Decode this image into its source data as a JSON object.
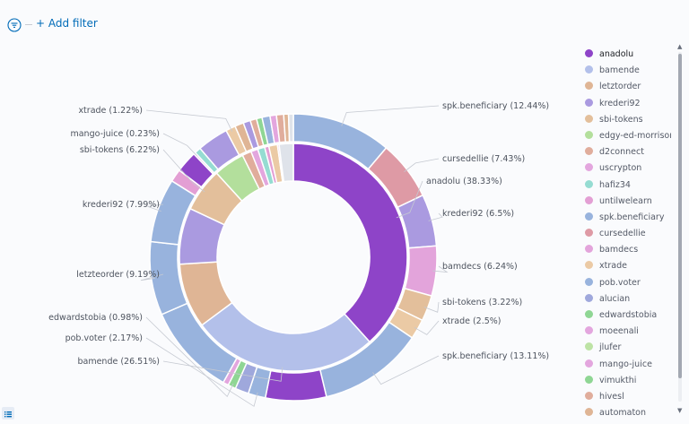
{
  "filter_bar": {
    "add_filter_label": "+ Add filter"
  },
  "legend": {
    "items": [
      {
        "label": "anadolu",
        "color": "#8e44c8"
      },
      {
        "label": "bamende",
        "color": "#b3c0ea"
      },
      {
        "label": "letztorder",
        "color": "#dfb595"
      },
      {
        "label": "krederi92",
        "color": "#aa9ae0"
      },
      {
        "label": "sbi-tokens",
        "color": "#e3bf9b"
      },
      {
        "label": "edgy-ed-morrison",
        "color": "#b3df9c"
      },
      {
        "label": "d2connect",
        "color": "#e0ad9c"
      },
      {
        "label": "uscrypton",
        "color": "#e3a6de"
      },
      {
        "label": "hafiz34",
        "color": "#95dcd2"
      },
      {
        "label": "untilwelearn",
        "color": "#e39fd4"
      },
      {
        "label": "spk.beneficiary",
        "color": "#98b3dd"
      },
      {
        "label": "cursedellie",
        "color": "#de9aa5"
      },
      {
        "label": "bamdecs",
        "color": "#e3a4db"
      },
      {
        "label": "xtrade",
        "color": "#ebcaa5"
      },
      {
        "label": "pob.voter",
        "color": "#98b3dd"
      },
      {
        "label": "alucian",
        "color": "#9fa8dc"
      },
      {
        "label": "edwardstobia",
        "color": "#8fd694"
      },
      {
        "label": "moeenali",
        "color": "#e3a6de"
      },
      {
        "label": "jlufer",
        "color": "#bde3a5"
      },
      {
        "label": "mango-juice",
        "color": "#e3a6de"
      },
      {
        "label": "vimukthi",
        "color": "#8fd694"
      },
      {
        "label": "hivesl",
        "color": "#e0ad9c"
      },
      {
        "label": "automaton",
        "color": "#dfb595"
      }
    ]
  },
  "chart_data": {
    "type": "pie",
    "donut": true,
    "inner_ring": {
      "slices": [
        {
          "label": "anadolu",
          "value": 38.33,
          "color": "#8e44c8",
          "show_label": true
        },
        {
          "label": "bamende",
          "value": 26.51,
          "color": "#b3c0ea",
          "show_label": true
        },
        {
          "label": "letzteorder",
          "value": 9.19,
          "color": "#dfb595",
          "show_label": true
        },
        {
          "label": "krederi92",
          "value": 7.99,
          "color": "#aa9ae0",
          "show_label": true
        },
        {
          "label": "sbi-tokens",
          "value": 6.22,
          "color": "#e3bf9b",
          "show_label": true
        },
        {
          "label": "edgy-ed-morrison",
          "value": 4.4,
          "color": "#b3df9c",
          "show_label": false
        },
        {
          "label": "d2connect",
          "value": 1.3,
          "color": "#e0ad9c",
          "show_label": false
        },
        {
          "label": "uscrypton",
          "value": 1.0,
          "color": "#e3a6de",
          "show_label": false
        },
        {
          "label": "hafiz34",
          "value": 1.0,
          "color": "#95dcd2",
          "show_label": false
        },
        {
          "label": "untilwelearn",
          "value": 0.6,
          "color": "#e39fd4",
          "show_label": false
        },
        {
          "label": "xtrade",
          "value": 1.22,
          "color": "#ebcaa5",
          "show_label": true
        },
        {
          "label": "mango-juice",
          "value": 0.23,
          "color": "#e3a6de",
          "show_label": true
        },
        {
          "label": "other",
          "value": 2.01,
          "color": "#dfe3ea",
          "show_label": false
        }
      ]
    },
    "outer_ring": {
      "slices": [
        {
          "label": "spk.beneficiary",
          "value": 12.44,
          "color": "#98b3dd",
          "show_label": true
        },
        {
          "label": "cursedellie",
          "value": 7.43,
          "color": "#de9aa5",
          "show_label": true
        },
        {
          "label": "krederi92",
          "value": 6.5,
          "color": "#aa9ae0",
          "show_label": true
        },
        {
          "label": "bamdecs",
          "value": 6.24,
          "color": "#e3a4db",
          "show_label": true
        },
        {
          "label": "sbi-tokens",
          "value": 3.22,
          "color": "#e3bf9b",
          "show_label": true
        },
        {
          "label": "xtrade",
          "value": 2.5,
          "color": "#ebcaa5",
          "show_label": true
        },
        {
          "label": "spk.beneficiary",
          "value": 13.11,
          "color": "#98b3dd",
          "show_label": true
        },
        {
          "label": "bamende",
          "value": 7.6,
          "color": "#8e44c8",
          "show_label": false
        },
        {
          "label": "pob.voter",
          "value": 2.17,
          "color": "#98b3dd",
          "show_label": true
        },
        {
          "label": "alucian",
          "value": 1.7,
          "color": "#9fa8dc",
          "show_label": false
        },
        {
          "label": "edwardstobia",
          "value": 0.98,
          "color": "#8fd694",
          "show_label": true
        },
        {
          "label": "moeenali",
          "value": 0.7,
          "color": "#e3a6de",
          "show_label": false
        },
        {
          "label": "bamende",
          "value": 11.5,
          "color": "#98b3dd",
          "show_label": false
        },
        {
          "label": "letzteorder",
          "value": 9.19,
          "color": "#98b3dd",
          "show_label": true
        },
        {
          "label": "krederi92",
          "value": 7.99,
          "color": "#98b3dd",
          "show_label": true
        },
        {
          "label": "uscrypton",
          "value": 1.6,
          "color": "#e39fd4",
          "show_label": false
        },
        {
          "label": "sbi-tokens",
          "value": 2.7,
          "color": "#8e44c8",
          "show_label": false
        },
        {
          "label": "mango-juice",
          "value": 0.23,
          "color": "#e3a6de",
          "show_label": true
        },
        {
          "label": "hafiz34",
          "value": 0.8,
          "color": "#95dcd2",
          "show_label": false
        },
        {
          "label": "edgy-ed-morrison",
          "value": 3.9,
          "color": "#aa9ae0",
          "show_label": false
        },
        {
          "label": "xtrade",
          "value": 1.22,
          "color": "#ebcaa5",
          "show_label": true
        },
        {
          "label": "d2connect",
          "value": 1.1,
          "color": "#dfb595",
          "show_label": false
        },
        {
          "label": "untilwelearn",
          "value": 0.9,
          "color": "#aa9ae0",
          "show_label": false
        },
        {
          "label": "hivesl",
          "value": 0.8,
          "color": "#e0ad9c",
          "show_label": false
        },
        {
          "label": "vimukthi",
          "value": 0.7,
          "color": "#8fd694",
          "show_label": false
        },
        {
          "label": "jlufer",
          "value": 1.0,
          "color": "#98b3dd",
          "show_label": false
        },
        {
          "label": "automaton",
          "value": 0.8,
          "color": "#e3a6de",
          "show_label": false
        },
        {
          "label": "hivesl",
          "value": 0.9,
          "color": "#e0ad9c",
          "show_label": false
        },
        {
          "label": "vimukthi",
          "value": 0.6,
          "color": "#dfb595",
          "show_label": false
        },
        {
          "label": "other",
          "value": 0.6,
          "color": "#dfe3ea",
          "show_label": false
        }
      ]
    },
    "labels": [
      {
        "text": "spk.beneficiary (12.44%)"
      },
      {
        "text": "cursedellie (7.43%)"
      },
      {
        "text": "anadolu (38.33%)"
      },
      {
        "text": "krederi92 (6.5%)"
      },
      {
        "text": "bamdecs (6.24%)"
      },
      {
        "text": "sbi-tokens (3.22%)"
      },
      {
        "text": "xtrade (2.5%)"
      },
      {
        "text": "spk.beneficiary (13.11%)"
      },
      {
        "text": "bamende (26.51%)"
      },
      {
        "text": "pob.voter (2.17%)"
      },
      {
        "text": "edwardstobia (0.98%)"
      },
      {
        "text": "letzteorder (9.19%)"
      },
      {
        "text": "krederi92 (7.99%)"
      },
      {
        "text": "sbi-tokens (6.22%)"
      },
      {
        "text": "mango-juice (0.23%)"
      },
      {
        "text": "xtrade (1.22%)"
      }
    ]
  }
}
